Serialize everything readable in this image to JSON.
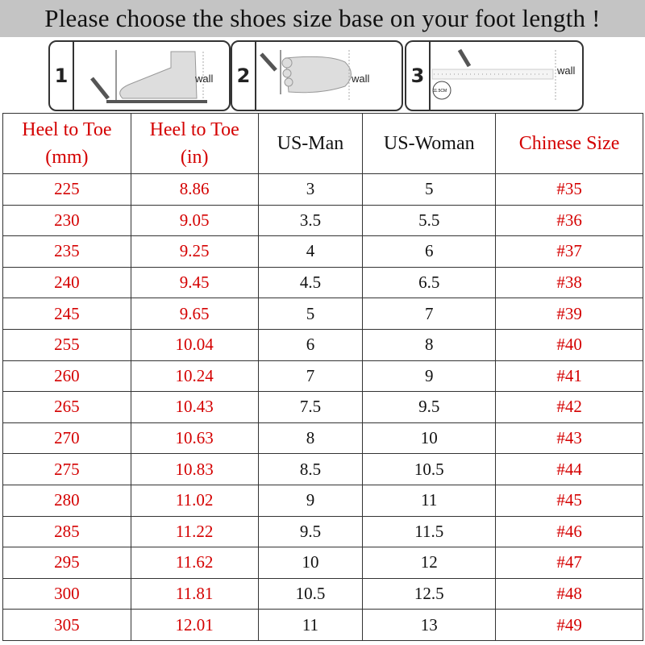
{
  "title": "Please choose the shoes size base on your foot length !",
  "steps": [
    {
      "number": "1",
      "wall_label": "wall"
    },
    {
      "number": "2",
      "wall_label": "wall"
    },
    {
      "number": "3",
      "wall_label": "wall",
      "ruler_label": "11.5CM"
    }
  ],
  "table": {
    "headers": [
      {
        "line1": "Heel to Toe",
        "line2": "(mm)",
        "color": "#d40000"
      },
      {
        "line1": "Heel to Toe",
        "line2": "(in)",
        "color": "#d40000"
      },
      {
        "line1": "US-Man",
        "line2": "",
        "color": "#111111"
      },
      {
        "line1": "US-Woman",
        "line2": "",
        "color": "#111111"
      },
      {
        "line1": "Chinese Size",
        "line2": "",
        "color": "#d40000"
      }
    ],
    "rows": [
      [
        "225",
        "8.86",
        "3",
        "5",
        "#35"
      ],
      [
        "230",
        "9.05",
        "3.5",
        "5.5",
        "#36"
      ],
      [
        "235",
        "9.25",
        "4",
        "6",
        "#37"
      ],
      [
        "240",
        "9.45",
        "4.5",
        "6.5",
        "#38"
      ],
      [
        "245",
        "9.65",
        "5",
        "7",
        "#39"
      ],
      [
        "255",
        "10.04",
        "6",
        "8",
        "#40"
      ],
      [
        "260",
        "10.24",
        "7",
        "9",
        "#41"
      ],
      [
        "265",
        "10.43",
        "7.5",
        "9.5",
        "#42"
      ],
      [
        "270",
        "10.63",
        "8",
        "10",
        "#43"
      ],
      [
        "275",
        "10.83",
        "8.5",
        "10.5",
        "#44"
      ],
      [
        "280",
        "11.02",
        "9",
        "11",
        "#45"
      ],
      [
        "285",
        "11.22",
        "9.5",
        "11.5",
        "#46"
      ],
      [
        "295",
        "11.62",
        "10",
        "12",
        "#47"
      ],
      [
        "300",
        "11.81",
        "10.5",
        "12.5",
        "#48"
      ],
      [
        "305",
        "12.01",
        "11",
        "13",
        "#49"
      ]
    ]
  }
}
